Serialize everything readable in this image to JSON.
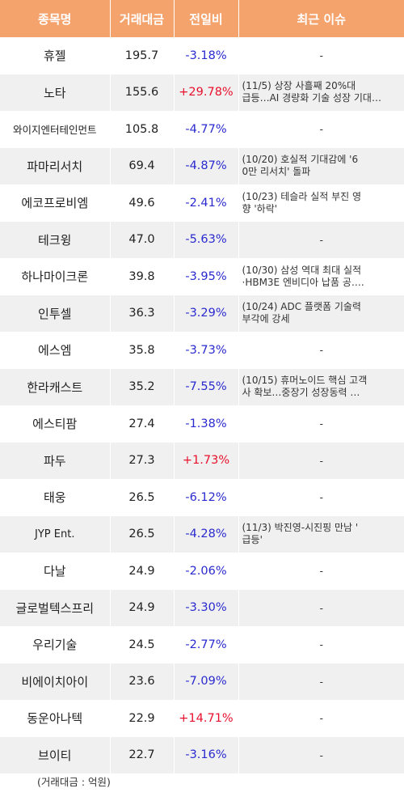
{
  "headers": {
    "name": "종목명",
    "amount": "거래대금",
    "change": "전일비",
    "issue": "최근 이슈"
  },
  "rows": [
    {
      "name": "휴젤",
      "amount": "195.7",
      "change": "-3.18%",
      "dir": "down",
      "issue": [
        "-"
      ]
    },
    {
      "name": "노타",
      "amount": "155.6",
      "change": "+29.78%",
      "dir": "up",
      "issue": [
        "(11/5) 상장 사흘째 20%대",
        "급등…AI 경량화 기술 성장 기대…"
      ]
    },
    {
      "name": "와이지엔터테인먼트",
      "amount": "105.8",
      "change": "-4.77%",
      "dir": "down",
      "issue": [
        "-"
      ]
    },
    {
      "name": "파마리서치",
      "amount": "69.4",
      "change": "-4.87%",
      "dir": "down",
      "issue": [
        "(10/20) 호실적 기대감에 '6",
        "0만 리서치' 돌파"
      ]
    },
    {
      "name": "에코프로비엠",
      "amount": "49.6",
      "change": "-2.41%",
      "dir": "down",
      "issue": [
        "(10/23) 테슬라 실적 부진 영",
        "향 '하락'"
      ]
    },
    {
      "name": "테크윙",
      "amount": "47.0",
      "change": "-5.63%",
      "dir": "down",
      "issue": [
        "-"
      ]
    },
    {
      "name": "하나마이크론",
      "amount": "39.8",
      "change": "-3.95%",
      "dir": "down",
      "issue": [
        "(10/30) 삼성 역대 최대 실적",
        "·HBM3E 엔비디아 납품 공…."
      ]
    },
    {
      "name": "인투셀",
      "amount": "36.3",
      "change": "-3.29%",
      "dir": "down",
      "issue": [
        "(10/24) ADC 플랫폼 기술력",
        " 부각에 강세"
      ]
    },
    {
      "name": "에스엠",
      "amount": "35.8",
      "change": "-3.73%",
      "dir": "down",
      "issue": [
        "-"
      ]
    },
    {
      "name": "한라캐스트",
      "amount": "35.2",
      "change": "-7.55%",
      "dir": "down",
      "issue": [
        "(10/15) 휴머노이드 핵심 고객",
        "사 확보…중장기 성장동력 …"
      ]
    },
    {
      "name": "에스티팜",
      "amount": "27.4",
      "change": "-1.38%",
      "dir": "down",
      "issue": [
        "-"
      ]
    },
    {
      "name": "파두",
      "amount": "27.3",
      "change": "+1.73%",
      "dir": "up",
      "issue": [
        "-"
      ]
    },
    {
      "name": "태웅",
      "amount": "26.5",
      "change": "-6.12%",
      "dir": "down",
      "issue": [
        "-"
      ]
    },
    {
      "name": "JYP Ent.",
      "amount": "26.5",
      "change": "-4.28%",
      "dir": "down",
      "issue": [
        "(11/3) 박진영-시진핑 만남 '",
        "급등'"
      ]
    },
    {
      "name": "다날",
      "amount": "24.9",
      "change": "-2.06%",
      "dir": "down",
      "issue": [
        "-"
      ]
    },
    {
      "name": "글로벌텍스프리",
      "amount": "24.9",
      "change": "-3.30%",
      "dir": "down",
      "issue": [
        "-"
      ]
    },
    {
      "name": "우리기술",
      "amount": "24.5",
      "change": "-2.77%",
      "dir": "down",
      "issue": [
        "-"
      ]
    },
    {
      "name": "비에이치아이",
      "amount": "23.6",
      "change": "-7.09%",
      "dir": "down",
      "issue": [
        "-"
      ]
    },
    {
      "name": "동운아나텍",
      "amount": "22.9",
      "change": "+14.71%",
      "dir": "up",
      "issue": [
        "-"
      ]
    },
    {
      "name": "브이티",
      "amount": "22.7",
      "change": "-3.16%",
      "dir": "down",
      "issue": [
        "-"
      ]
    }
  ],
  "footnote": "(거래대금 : 억원)",
  "colors": {
    "header_bg": "#f5a36d",
    "up": "#e8112d",
    "down": "#2a2ad0",
    "stripe": "#f0f0f0"
  }
}
